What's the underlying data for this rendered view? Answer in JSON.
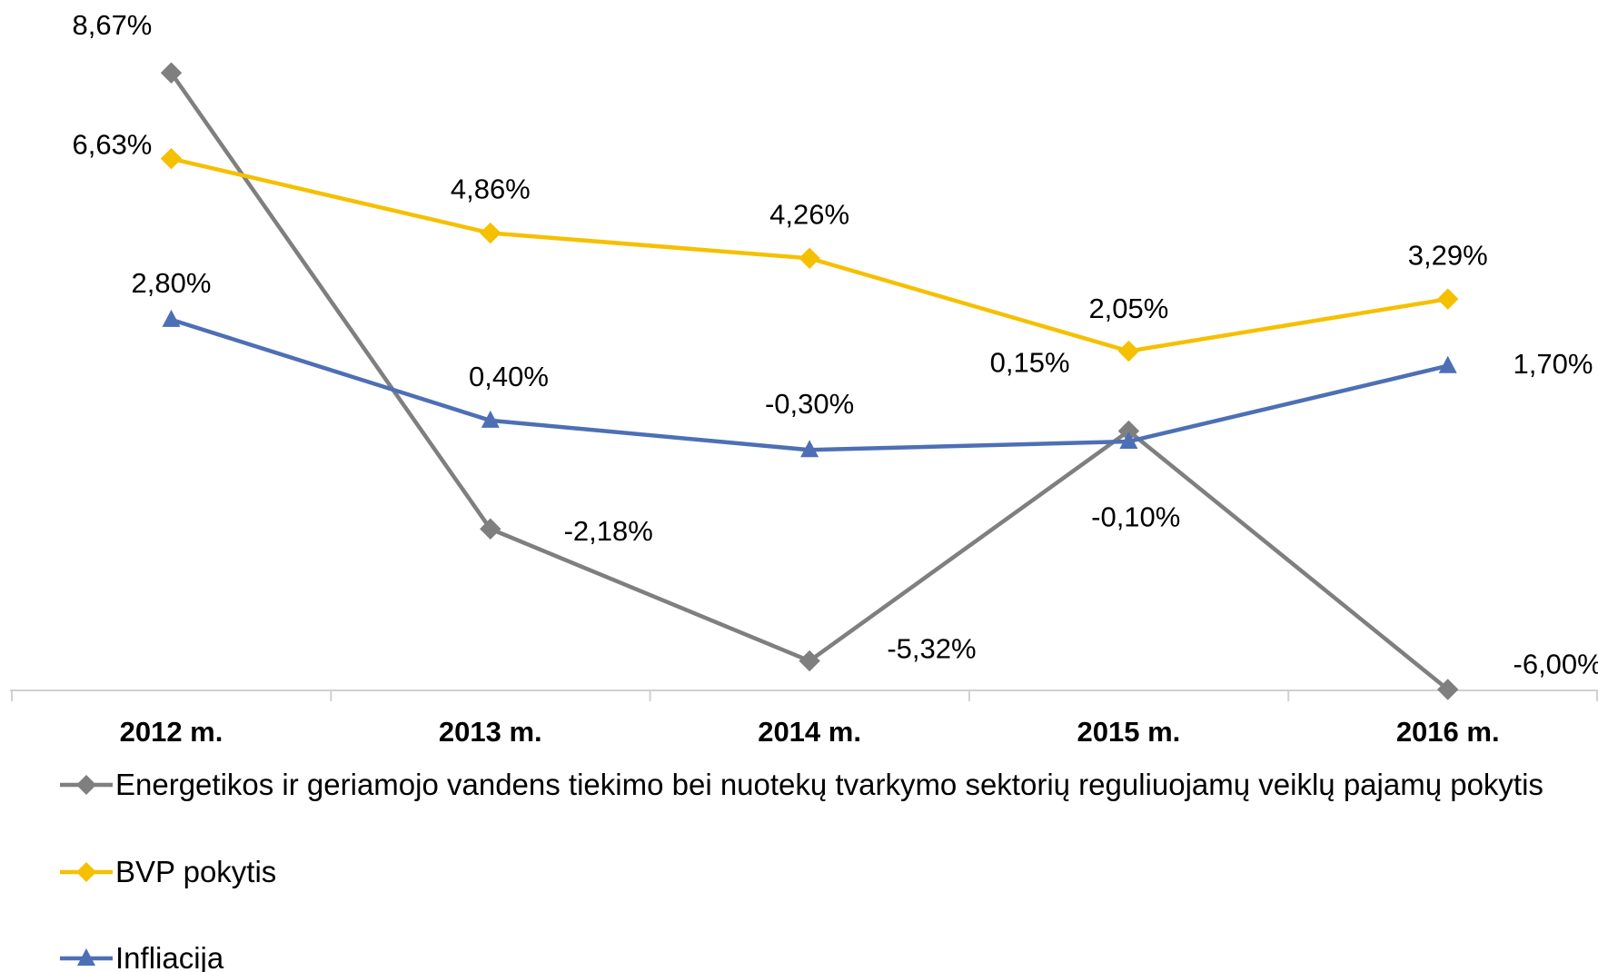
{
  "chart_data": {
    "type": "line",
    "categories": [
      "2012 m.",
      "2013 m.",
      "2014 m.",
      "2015 m.",
      "2016 m."
    ],
    "series": [
      {
        "name": "Energetikos ir geriamojo vandens tiekimo bei nuotekų tvarkymo sektorių reguliuojamų veiklų pajamų pokytis",
        "color": "#7f7f7f",
        "marker": "diamond",
        "values": [
          8.67,
          -2.18,
          -5.32,
          0.15,
          -6.0
        ],
        "value_labels": [
          "8,67%",
          "-2,18%",
          "-5,32%",
          "0,15%",
          "-6,00%"
        ]
      },
      {
        "name": "BVP pokytis",
        "color": "#f5c000",
        "marker": "diamond",
        "values": [
          6.63,
          4.86,
          4.26,
          2.05,
          3.29
        ],
        "value_labels": [
          "6,63%",
          "4,86%",
          "4,26%",
          "2,05%",
          "3,29%"
        ]
      },
      {
        "name": "Infliacija",
        "color": "#4d6fb5",
        "marker": "triangle",
        "values": [
          2.8,
          0.4,
          -0.3,
          -0.1,
          1.7
        ],
        "value_labels": [
          "2,80%",
          "0,40%",
          "-0,30%",
          "-0,10%",
          "1,70%"
        ]
      }
    ],
    "ylim": [
      -6,
      9
    ]
  }
}
